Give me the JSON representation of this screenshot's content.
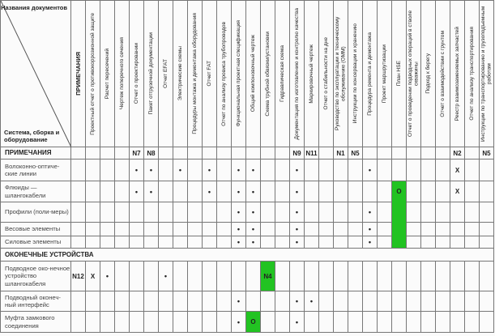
{
  "corner": {
    "top_label": "Названия документов",
    "bottom_label": "Система, сборка и оборудование"
  },
  "columns": [
    "ПРИМЕЧАНИЯ",
    "Проектный отчет о противокоррозионной защите",
    "Расчет пересечений",
    "Чертеж поперечного сечения",
    "Отчет о проектировании",
    "Пакет отгрузочной документации",
    "Отчет EFAT",
    "Электрические схемы",
    "Процедуры монтажа и демонтажа оборудования",
    "Отчет FAT",
    "Отчет по анализу провиса трубопроводов",
    "Функциональная проектная спецификация",
    "Общий компоновочный чертеж",
    "Схема трубной обвязки/установки",
    "Гидравлическая схема",
    "Документация по изготовлению и контролю качества",
    "Маркировочный чертеж",
    "Отчет о стабильности на дне",
    "Руководство по эксплуатации и техническому обслуживанию (ОММ)",
    "Инструкции по консервации и хранению",
    "Процедура ремонта и демонтажа",
    "Проект маршрутизации",
    "План HSE",
    "Отчет о проведении подводных операций в стволе скважины",
    "Подход к берегу",
    "Отчет о взаимодействии с грунтом",
    "Реестр взаимозаменяемых запчастей",
    "Отчет по анализу транспортирования",
    "Инструкции по транспортированию и грузоподъемным работам"
  ],
  "highlight_color": "#22c322",
  "rows": [
    {
      "type": "notes",
      "label": "ПРИМЕЧАНИЯ",
      "cells": {
        "4": "N7",
        "5": "N8",
        "15": "N9",
        "16": "N11",
        "18": "N1",
        "19": "N5",
        "26": "N2",
        "28": "N5"
      },
      "green": []
    },
    {
      "type": "row",
      "label": "Волоконно-оптиче-ские линии",
      "cells": {
        "4": "•",
        "5": "•",
        "7": "•",
        "9": "•",
        "11": "•",
        "12": "•",
        "15": "•",
        "20": "•",
        "26": "X"
      },
      "green": []
    },
    {
      "type": "row",
      "label": "Флюиды — шлангокабели",
      "cells": {
        "4": "•",
        "5": "•",
        "9": "•",
        "11": "•",
        "12": "•",
        "15": "•",
        "22": "O",
        "26": "X"
      },
      "green": [
        22
      ]
    },
    {
      "type": "row",
      "label": "Профили (поли-меры)",
      "cells": {
        "11": "•",
        "12": "•",
        "15": "•",
        "20": "•"
      },
      "green": [
        22
      ]
    },
    {
      "type": "row",
      "label": "Весовые элементы",
      "cells": {
        "11": "•",
        "12": "•",
        "15": "•",
        "20": "•"
      },
      "green": [
        22
      ]
    },
    {
      "type": "row",
      "label": "Силовые элементы",
      "cells": {
        "11": "•",
        "12": "•",
        "15": "•",
        "20": "•"
      },
      "green": [
        22
      ]
    },
    {
      "type": "section",
      "label": "ОКОНЕЧНЫЕ УСТРОЙСТВА"
    },
    {
      "type": "row",
      "label": "Подводное око-нечное устройство шлангокабеля",
      "cells": {
        "0": "N12",
        "1": "X",
        "2": "•",
        "6": "•",
        "13": "N4"
      },
      "green": [
        13
      ]
    },
    {
      "type": "row",
      "label": "Подводный оконеч-ный интерфейс",
      "cells": {
        "11": "•",
        "15": "•",
        "16": "•"
      },
      "green": []
    },
    {
      "type": "row",
      "label": "Муфта замкового соединения",
      "cells": {
        "11": "•",
        "12": "O",
        "15": "•"
      },
      "green": [
        12
      ]
    }
  ]
}
